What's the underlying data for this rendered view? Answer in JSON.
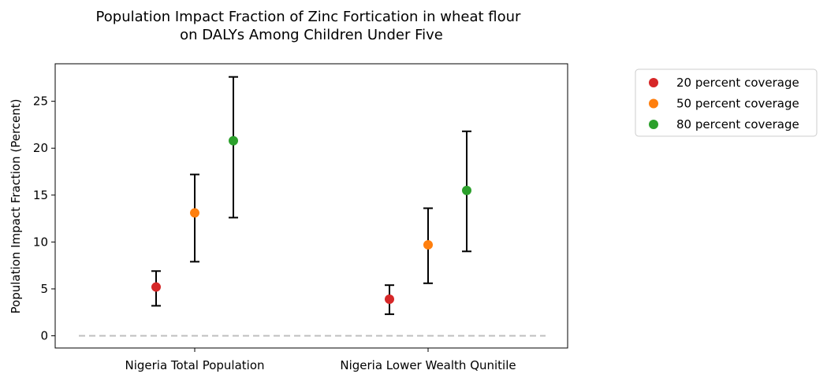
{
  "chart_data": {
    "type": "scatter",
    "title_lines": [
      "Population Impact Fraction of Zinc Fortication in wheat flour",
      "on DALYs Among Children Under Five"
    ],
    "xlabel": "",
    "ylabel": "Population Impact Fraction (Percent)",
    "categories": [
      "Nigeria Total Population",
      "Nigeria Lower Wealth Qunitile"
    ],
    "ylim": [
      -1.3,
      29
    ],
    "yticks": [
      0,
      5,
      10,
      15,
      20,
      25
    ],
    "grid": false,
    "legend_position": "outside-right",
    "reference_line": {
      "y": 0,
      "color": "#bfbfbf",
      "style": "dashed"
    },
    "series": [
      {
        "name": "20 percent coverage",
        "color": "#d62728",
        "values": [
          5.2,
          3.9
        ],
        "lower": [
          3.2,
          2.3
        ],
        "upper": [
          6.9,
          5.4
        ]
      },
      {
        "name": "50 percent coverage",
        "color": "#ff7f0e",
        "values": [
          13.1,
          9.7
        ],
        "lower": [
          7.9,
          5.6
        ],
        "upper": [
          17.2,
          13.6
        ]
      },
      {
        "name": "80 percent coverage",
        "color": "#2ca02c",
        "values": [
          20.8,
          15.5
        ],
        "lower": [
          12.6,
          9.0
        ],
        "upper": [
          27.6,
          21.8
        ]
      }
    ]
  }
}
